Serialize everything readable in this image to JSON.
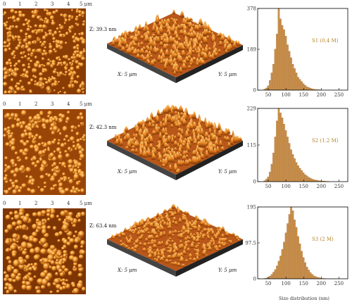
{
  "colors": {
    "bar_fill": "#c98f4a",
    "bar_stroke": "#a4692c",
    "sample_label": "#b5842a",
    "afm_dark": "#6b2d02",
    "afm_mid": "#c0610d",
    "afm_light": "#ffb04a",
    "afm_highlight": "#ffe0a0"
  },
  "rows": [
    {
      "map_ticks": [
        "0",
        "1",
        "2",
        "3",
        "4",
        "5 μm"
      ],
      "z_label": "Z: 39.3 nm",
      "x_label": "X: 5 μm",
      "y_label": "Y: 5 μm"
    },
    {
      "map_ticks": [
        "0",
        "1",
        "2",
        "3",
        "4",
        "5 μm"
      ],
      "z_label": "Z: 42.3 nm",
      "x_label": "X: 5 μm",
      "y_label": "Y: 5 μm"
    },
    {
      "map_ticks": [
        "0",
        "1",
        "2",
        "3",
        "4",
        "5 μm"
      ],
      "z_label": "Z: 63.4 nm",
      "x_label": "X: 5 μm",
      "y_label": "Y: 5 μm"
    }
  ],
  "chart_data": [
    {
      "type": "bar",
      "title": "",
      "xlabel": "",
      "ylabel": "",
      "xlim": [
        20,
        275
      ],
      "xticks": [
        50,
        100,
        150,
        200,
        250
      ],
      "yticks": [
        "0",
        "189",
        "378"
      ],
      "ylim": [
        0,
        378
      ],
      "bin_width": 5,
      "annotation": "S1 (0.4 M)",
      "x": [
        40,
        45,
        50,
        55,
        60,
        65,
        70,
        75,
        80,
        85,
        90,
        95,
        100,
        105,
        110,
        115,
        120,
        125,
        130,
        135,
        140,
        145,
        150,
        155,
        160,
        165,
        170,
        175,
        180,
        185,
        190,
        195,
        200
      ],
      "values": [
        5,
        10,
        20,
        45,
        80,
        120,
        190,
        260,
        378,
        330,
        300,
        280,
        250,
        210,
        180,
        150,
        120,
        100,
        80,
        60,
        50,
        40,
        30,
        22,
        16,
        12,
        9,
        6,
        4,
        3,
        2,
        2,
        1
      ]
    },
    {
      "type": "bar",
      "title": "",
      "xlabel": "",
      "ylabel": "",
      "xlim": [
        20,
        275
      ],
      "xticks": [
        50,
        100,
        150,
        200,
        250
      ],
      "yticks": [
        "0",
        "115",
        "229"
      ],
      "ylim": [
        0,
        229
      ],
      "bin_width": 5,
      "annotation": "S2 (1.2 M)",
      "x": [
        40,
        45,
        50,
        55,
        60,
        65,
        70,
        75,
        80,
        85,
        90,
        95,
        100,
        105,
        110,
        115,
        120,
        125,
        130,
        135,
        140,
        145,
        150,
        155,
        160,
        165,
        170,
        175,
        180,
        185,
        190,
        195,
        200,
        205,
        210,
        215,
        220
      ],
      "values": [
        3,
        8,
        15,
        30,
        55,
        90,
        140,
        190,
        229,
        215,
        200,
        180,
        160,
        140,
        120,
        100,
        85,
        72,
        60,
        50,
        42,
        35,
        28,
        22,
        18,
        14,
        11,
        8,
        6,
        5,
        4,
        3,
        3,
        2,
        2,
        1,
        1
      ]
    },
    {
      "type": "bar",
      "title": "",
      "xlabel": "Size distribution (nm)",
      "ylabel": "",
      "xlim": [
        20,
        275
      ],
      "xticks": [
        50,
        100,
        150,
        200,
        250
      ],
      "yticks": [
        "0",
        "97.5",
        "195"
      ],
      "ylim": [
        0,
        195
      ],
      "bin_width": 5,
      "annotation": "S3 (2 M)",
      "x": [
        40,
        45,
        50,
        55,
        60,
        65,
        70,
        75,
        80,
        85,
        90,
        95,
        100,
        105,
        110,
        115,
        120,
        125,
        130,
        135,
        140,
        145,
        150,
        155,
        160,
        165,
        170,
        175,
        180,
        185,
        190,
        195,
        200,
        205,
        210
      ],
      "values": [
        1,
        2,
        4,
        7,
        12,
        18,
        25,
        35,
        48,
        62,
        80,
        100,
        125,
        150,
        175,
        195,
        185,
        160,
        140,
        115,
        95,
        75,
        58,
        44,
        32,
        24,
        17,
        12,
        8,
        6,
        4,
        3,
        2,
        1,
        1
      ]
    }
  ]
}
